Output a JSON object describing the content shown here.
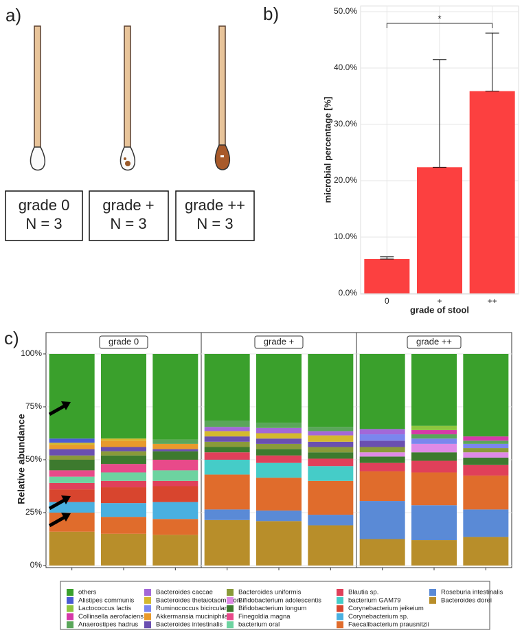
{
  "panel_labels": [
    "a)",
    "b)",
    "c)"
  ],
  "panel_a": {
    "boxes": [
      {
        "grade": "grade 0",
        "n": "N = 3"
      },
      {
        "grade": "grade +",
        "n": "N = 3"
      },
      {
        "grade": "grade ++",
        "n": "N = 3"
      }
    ]
  },
  "chart_data": [
    {
      "type": "bar",
      "categories": [
        "0",
        "+",
        "++"
      ],
      "values": [
        6.1,
        22.4,
        35.9
      ],
      "errors": [
        0.4,
        19.1,
        10.3
      ],
      "color": "#fc4040",
      "ylim": [
        0,
        51
      ],
      "yticks": [
        {
          "value": 0,
          "label": "0.0%"
        },
        {
          "value": 10,
          "label": "10.0%"
        },
        {
          "value": 20,
          "label": "20.0%"
        },
        {
          "value": 30,
          "label": "30.0%"
        },
        {
          "value": 40,
          "label": "40.0%"
        },
        {
          "value": 50,
          "label": "50.0%"
        }
      ],
      "y_label": "microbial percentage [%]",
      "x_label": "grade of stool",
      "annotation": "*",
      "grid": true
    },
    {
      "type": "stacked_bar",
      "y_label": "Relative abundance",
      "facets": [
        "grade 0",
        "grade +",
        "grade ++"
      ],
      "categories": [
        null,
        null,
        null,
        null,
        null,
        null,
        null,
        null,
        null
      ],
      "ylim": [
        0,
        100
      ],
      "yticks": [
        {
          "value": 0,
          "label": "0%"
        },
        {
          "value": 25,
          "label": "25%"
        },
        {
          "value": 50,
          "label": "50%"
        },
        {
          "value": 75,
          "label": "75%"
        },
        {
          "value": 100,
          "label": "100%"
        }
      ],
      "grid": true,
      "series": [
        {
          "name": "others",
          "color": "#3aa02c",
          "values": [
            40,
            40,
            40.5,
            31.5,
            32.5,
            34.5,
            35.5,
            34,
            39
          ]
        },
        {
          "name": "Alistipes communis",
          "color": "#4a5bd4",
          "values": [
            2,
            0,
            0,
            0,
            0,
            0,
            0,
            0,
            0
          ]
        },
        {
          "name": "Lactococcus lactis",
          "color": "#8dc63f",
          "values": [
            0,
            0,
            0,
            0,
            0,
            0,
            0,
            2,
            0
          ]
        },
        {
          "name": "Collinsella aerofaciens",
          "color": "#d63aa8",
          "values": [
            0,
            0,
            0,
            0,
            0,
            0,
            0,
            2,
            2
          ]
        },
        {
          "name": "Anaerostipes hadrus",
          "color": "#5aa65a",
          "values": [
            0,
            0,
            2,
            3,
            2.5,
            2,
            0,
            2,
            1.5
          ]
        },
        {
          "name": "Bacteroides caccae",
          "color": "#a368d8",
          "values": [
            0,
            0,
            0,
            2,
            2.5,
            2,
            2.5,
            0,
            0
          ]
        },
        {
          "name": "Bacteroides thetaiotaomicron",
          "color": "#d4b92e",
          "values": [
            1,
            1,
            0,
            2.5,
            2.5,
            3,
            0,
            0,
            0
          ]
        },
        {
          "name": "Ruminococcus bicirculans",
          "color": "#7b86ee",
          "values": [
            0,
            0,
            0,
            0,
            0,
            0,
            3,
            2.5,
            2
          ]
        },
        {
          "name": "Akkermansia muciniphila",
          "color": "#e89a2c",
          "values": [
            2,
            3,
            2.5,
            0,
            0,
            0,
            0,
            0,
            0
          ]
        },
        {
          "name": "Bacteroides intestinalis",
          "color": "#6a4fb0",
          "values": [
            3,
            2,
            1,
            2.5,
            2.5,
            2.5,
            3,
            0,
            0
          ]
        },
        {
          "name": "Bacteroides uniformis",
          "color": "#8a9a3a",
          "values": [
            2,
            2,
            0,
            2.5,
            2.5,
            2.5,
            2.5,
            0,
            2
          ]
        },
        {
          "name": "Bifidobacterium adolescentis",
          "color": "#df8ae6",
          "values": [
            0,
            0,
            0,
            0,
            0,
            0,
            2,
            4,
            2.5
          ]
        },
        {
          "name": "Bifidobacterium longum",
          "color": "#3d7a2e",
          "values": [
            5,
            4,
            4,
            2.5,
            3,
            3,
            3,
            4,
            3.5
          ]
        },
        {
          "name": "Finegoldia magna",
          "color": "#e84a8a",
          "values": [
            3,
            4,
            5,
            0,
            0,
            0,
            0,
            0,
            0
          ]
        },
        {
          "name": "bacterium oral",
          "color": "#6dd3a0",
          "values": [
            3,
            4,
            5,
            0,
            0,
            0,
            0,
            0,
            0
          ]
        },
        {
          "name": "Blautia sp.",
          "color": "#e0405a",
          "values": [
            3,
            3,
            2.5,
            3.5,
            3.5,
            3.5,
            4,
            5.5,
            5
          ]
        },
        {
          "name": "bacterium GAM79",
          "color": "#45ccc8",
          "values": [
            0,
            0,
            0,
            7,
            7,
            7,
            0,
            0,
            0
          ]
        },
        {
          "name": "Corynebacterium jeikeium",
          "color": "#d8452e",
          "values": [
            6,
            7.5,
            7.5,
            0,
            0,
            0,
            0,
            0,
            0
          ]
        },
        {
          "name": "Corynebacterium sp.",
          "color": "#4ab0e0",
          "values": [
            5,
            6.5,
            8,
            0,
            0,
            0,
            0,
            0,
            0
          ]
        },
        {
          "name": "Faecalibacterium prausnitzii",
          "color": "#e06c2c",
          "values": [
            9,
            8,
            7.5,
            16.5,
            15.5,
            16,
            14,
            15.5,
            16
          ]
        },
        {
          "name": "Roseburia intestinalis",
          "color": "#5a8ad6",
          "values": [
            0,
            0,
            0,
            5,
            5,
            5,
            18,
            16.5,
            13
          ]
        },
        {
          "name": "Bacteroides dorei",
          "color": "#b88e2a",
          "values": [
            16,
            15,
            14.5,
            21.5,
            21,
            19,
            12.5,
            12,
            13.5
          ]
        }
      ]
    }
  ]
}
